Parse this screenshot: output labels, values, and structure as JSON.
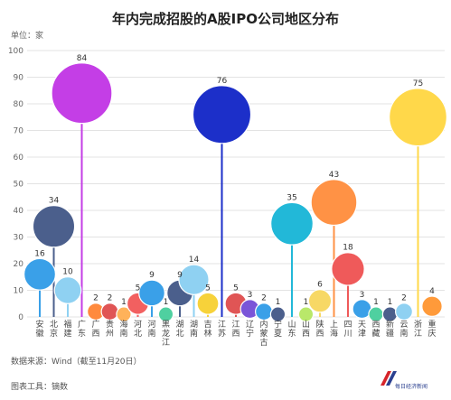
{
  "title": "年内完成招股的A股IPO公司地区分布",
  "unit": "单位：家",
  "source": "数据来源：Wind（截至11月20日）",
  "tool": "图表工具：镝数",
  "logo_text": "每日经济新闻",
  "chart_data": {
    "type": "scatter",
    "title": "年内完成招股的A股IPO公司地区分布",
    "ylim": [
      0,
      100
    ],
    "yticks": [
      0,
      10,
      20,
      30,
      40,
      50,
      60,
      70,
      80,
      90,
      100
    ],
    "grid": true,
    "categories": [
      "安徽",
      "北京",
      "福建",
      "广东",
      "广西",
      "贵州",
      "海南",
      "河北",
      "河南",
      "黑龙江",
      "湖北",
      "湖南",
      "吉林",
      "江苏",
      "江西",
      "辽宁",
      "内蒙古",
      "宁夏",
      "山东",
      "山西",
      "陕西",
      "上海",
      "四川",
      "天津",
      "西藏",
      "新疆",
      "云南",
      "浙江",
      "重庆"
    ],
    "values": [
      16,
      34,
      10,
      84,
      2,
      2,
      1,
      5,
      9,
      1,
      9,
      14,
      5,
      76,
      5,
      3,
      2,
      1,
      35,
      1,
      6,
      43,
      18,
      3,
      1,
      1,
      2,
      75,
      4
    ],
    "colors": [
      "#3aa0e8",
      "#4b5f8c",
      "#8fd1f2",
      "#c43ee6",
      "#ff8a3d",
      "#e05555",
      "#ffb25a",
      "#f26060",
      "#3aa0e8",
      "#4fd0a0",
      "#4b5f8c",
      "#8fd1f2",
      "#f7d23a",
      "#1c2fc9",
      "#e05555",
      "#7a55d8",
      "#3aa0e8",
      "#4b5f8c",
      "#22b8d8",
      "#b9e86a",
      "#f7d865",
      "#ff9245",
      "#ef5a5a",
      "#3aa0e8",
      "#4fd0a0",
      "#4b5f8c",
      "#8fd1f2",
      "#ffd84a",
      "#ff9a3a"
    ]
  }
}
